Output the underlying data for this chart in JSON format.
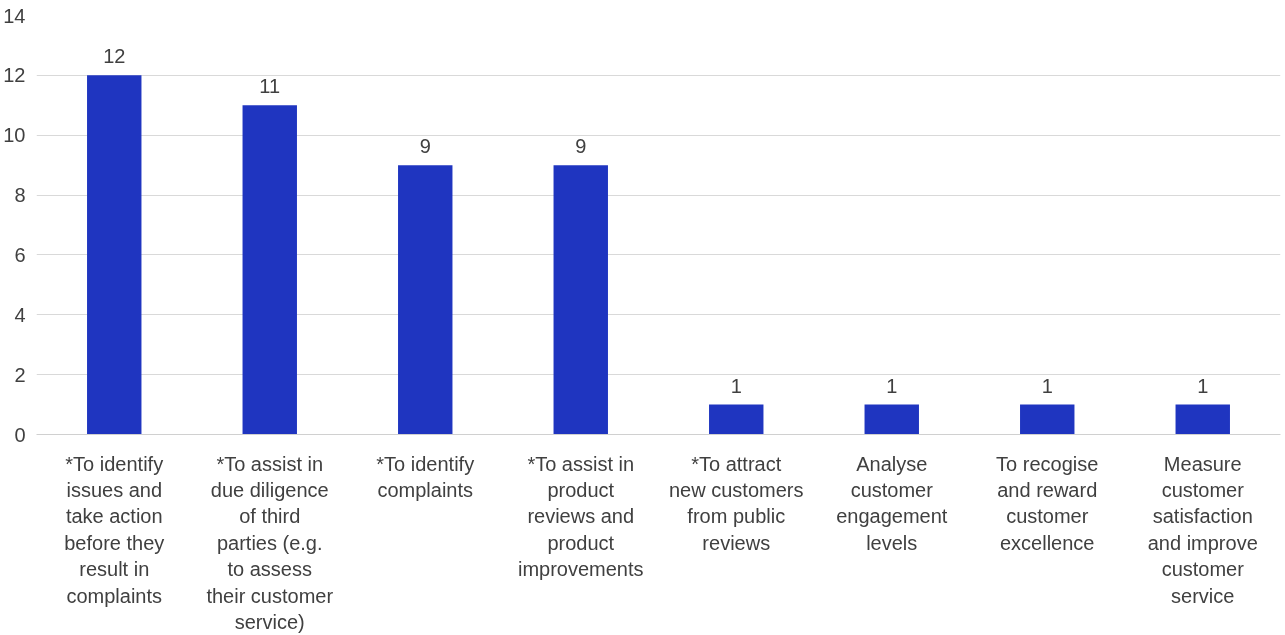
{
  "chart_data": {
    "type": "bar",
    "categories": [
      "*To identify issues and take action before they result in complaints",
      "*To assist in due diligence of third parties (e.g. to assess their customer service)",
      "*To identify complaints",
      "*To assist in product reviews and product improvements",
      "*To attract new customers from public reviews",
      "Analyse customer engagement levels",
      "To recogise and reward customer excellence",
      "Measure customer satisfaction and improve customer service"
    ],
    "values": [
      12,
      11,
      9,
      9,
      1,
      1,
      1,
      1
    ],
    "color": "#1f35c0",
    "ylim": [
      0,
      14
    ],
    "yticks": [
      0,
      2,
      4,
      6,
      8,
      10,
      12,
      14
    ],
    "grid": "y",
    "data_labels": true
  }
}
